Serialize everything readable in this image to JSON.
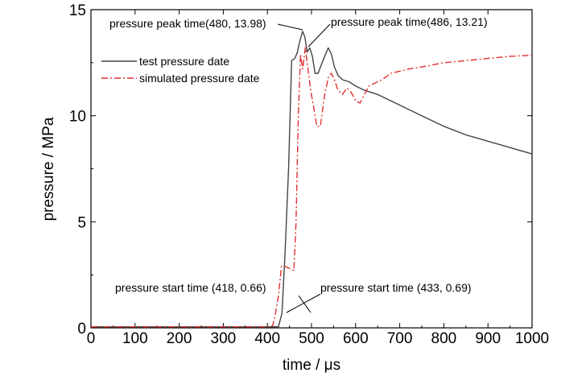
{
  "chart_data": {
    "type": "line",
    "xlabel": "time / μs",
    "ylabel": "pressure / MPa",
    "xlim": [
      0,
      1000
    ],
    "ylim": [
      0,
      15
    ],
    "xticks": [
      0,
      100,
      200,
      300,
      400,
      500,
      600,
      700,
      800,
      900,
      1000
    ],
    "yticks": [
      0,
      5,
      10,
      15
    ],
    "grid": false,
    "legend_position": "top-left",
    "series": [
      {
        "name": "test pressure date",
        "color": "#444444",
        "dash": "solid",
        "x": [
          0,
          400,
          425,
          433,
          440,
          448,
          455,
          462,
          468,
          472,
          476,
          480,
          485,
          490,
          496,
          502,
          508,
          515,
          522,
          530,
          538,
          545,
          552,
          560,
          570,
          585,
          600,
          620,
          650,
          700,
          750,
          800,
          850,
          900,
          950,
          1000
        ],
        "y": [
          0.05,
          0.05,
          0.05,
          0.69,
          3.5,
          7.5,
          12.6,
          12.7,
          13.0,
          13.4,
          13.7,
          13.98,
          13.7,
          13.0,
          13.2,
          12.8,
          12.0,
          12.0,
          12.4,
          12.8,
          13.2,
          12.9,
          12.3,
          11.9,
          11.7,
          11.6,
          11.4,
          11.2,
          11.0,
          10.5,
          10.0,
          9.5,
          9.1,
          8.8,
          8.5,
          8.2
        ]
      },
      {
        "name": "simulated pressure date",
        "color": "#e03030",
        "dash": "dashdot",
        "x": [
          0,
          400,
          412,
          418,
          425,
          432,
          440,
          450,
          460,
          465,
          470,
          475,
          480,
          486,
          492,
          498,
          505,
          512,
          520,
          530,
          538,
          545,
          552,
          560,
          570,
          580,
          590,
          600,
          610,
          620,
          630,
          640,
          650,
          660,
          680,
          700,
          720,
          750,
          800,
          850,
          900,
          950,
          1000
        ],
        "y": [
          0.05,
          0.05,
          0.1,
          0.66,
          1.5,
          2.9,
          2.9,
          2.8,
          2.7,
          5.0,
          10.0,
          12.9,
          12.2,
          13.21,
          12.2,
          11.2,
          10.4,
          9.5,
          9.5,
          11.0,
          11.8,
          12.0,
          11.7,
          11.2,
          11.0,
          11.3,
          11.1,
          10.7,
          10.6,
          11.0,
          11.4,
          11.5,
          11.6,
          11.7,
          12.0,
          12.1,
          12.2,
          12.3,
          12.5,
          12.6,
          12.7,
          12.8,
          12.85
        ]
      }
    ],
    "annotations": [
      {
        "text": "pressure peak time(480, 13.98)",
        "x": 480,
        "y": 13.98
      },
      {
        "text": "pressure peak time(486, 13.21)",
        "x": 486,
        "y": 13.21
      },
      {
        "text": "pressure start time (418, 0.66)",
        "x": 418,
        "y": 0.66
      },
      {
        "text": "pressure start time (433, 0.69)",
        "x": 433,
        "y": 0.69
      }
    ]
  }
}
